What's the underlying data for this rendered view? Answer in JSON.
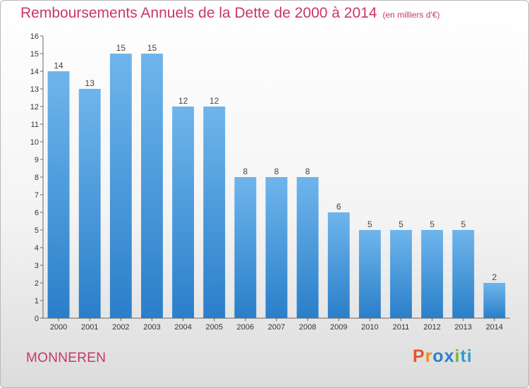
{
  "title": "Remboursements Annuels de la Dette de 2000 à 2014",
  "unit_note": "(en milliers d'€)",
  "location": "MONNEREN",
  "brand": {
    "p1": "P",
    "p2": "r",
    "p3": "o",
    "p4": "x",
    "p5": "i",
    "p6": "ti"
  },
  "colors": {
    "bar_light": "#6fb5ec",
    "bar_dark": "#2a7fc9",
    "title": "#c8366e"
  },
  "chart_data": {
    "type": "bar",
    "title": "Remboursements Annuels de la Dette de 2000 à 2014",
    "xlabel": "",
    "ylabel": "",
    "categories": [
      "2000",
      "2001",
      "2002",
      "2003",
      "2004",
      "2005",
      "2006",
      "2007",
      "2008",
      "2009",
      "2010",
      "2011",
      "2012",
      "2013",
      "2014"
    ],
    "values": [
      14,
      13,
      15,
      15,
      12,
      12,
      8,
      8,
      8,
      6,
      5,
      5,
      5,
      5,
      2
    ],
    "ylim": [
      0,
      16
    ],
    "yticks": [
      0,
      1,
      2,
      3,
      4,
      5,
      6,
      7,
      8,
      9,
      10,
      11,
      12,
      13,
      14,
      15,
      16
    ],
    "grid": false,
    "legend": "none"
  }
}
